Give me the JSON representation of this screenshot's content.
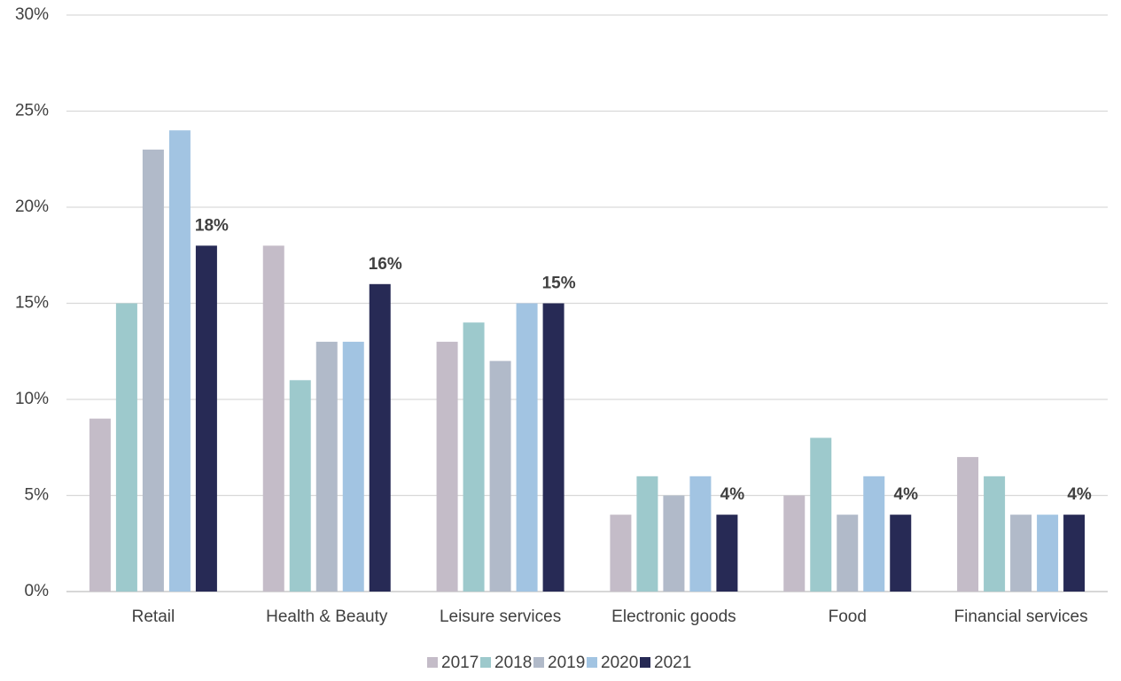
{
  "chart_data": {
    "type": "bar",
    "categories": [
      "Retail",
      "Health & Beauty",
      "Leisure services",
      "Electronic goods",
      "Food",
      "Financial services"
    ],
    "series": [
      {
        "name": "2017",
        "color": "#c4bcc8",
        "values": [
          9,
          18,
          13,
          4,
          5,
          7
        ]
      },
      {
        "name": "2018",
        "color": "#9dc9cc",
        "values": [
          15,
          11,
          14,
          6,
          8,
          6
        ]
      },
      {
        "name": "2019",
        "color": "#b1bac9",
        "values": [
          23,
          13,
          12,
          5,
          4,
          4
        ]
      },
      {
        "name": "2020",
        "color": "#a2c4e2",
        "values": [
          24,
          13,
          15,
          6,
          6,
          4
        ]
      },
      {
        "name": "2021",
        "color": "#272a55",
        "values": [
          18,
          16,
          15,
          4,
          4,
          4
        ],
        "value_labels": [
          "18%",
          "16%",
          "15%",
          "4%",
          "4%",
          "4%"
        ]
      }
    ],
    "ylim": [
      0,
      30
    ],
    "yticks": [
      {
        "value": 0,
        "label": "0%"
      },
      {
        "value": 5,
        "label": "5%"
      },
      {
        "value": 10,
        "label": "10%"
      },
      {
        "value": 15,
        "label": "15%"
      },
      {
        "value": 20,
        "label": "20%"
      },
      {
        "value": 25,
        "label": "25%"
      },
      {
        "value": 30,
        "label": "30%"
      }
    ],
    "grid": true,
    "legend": "bottom"
  }
}
